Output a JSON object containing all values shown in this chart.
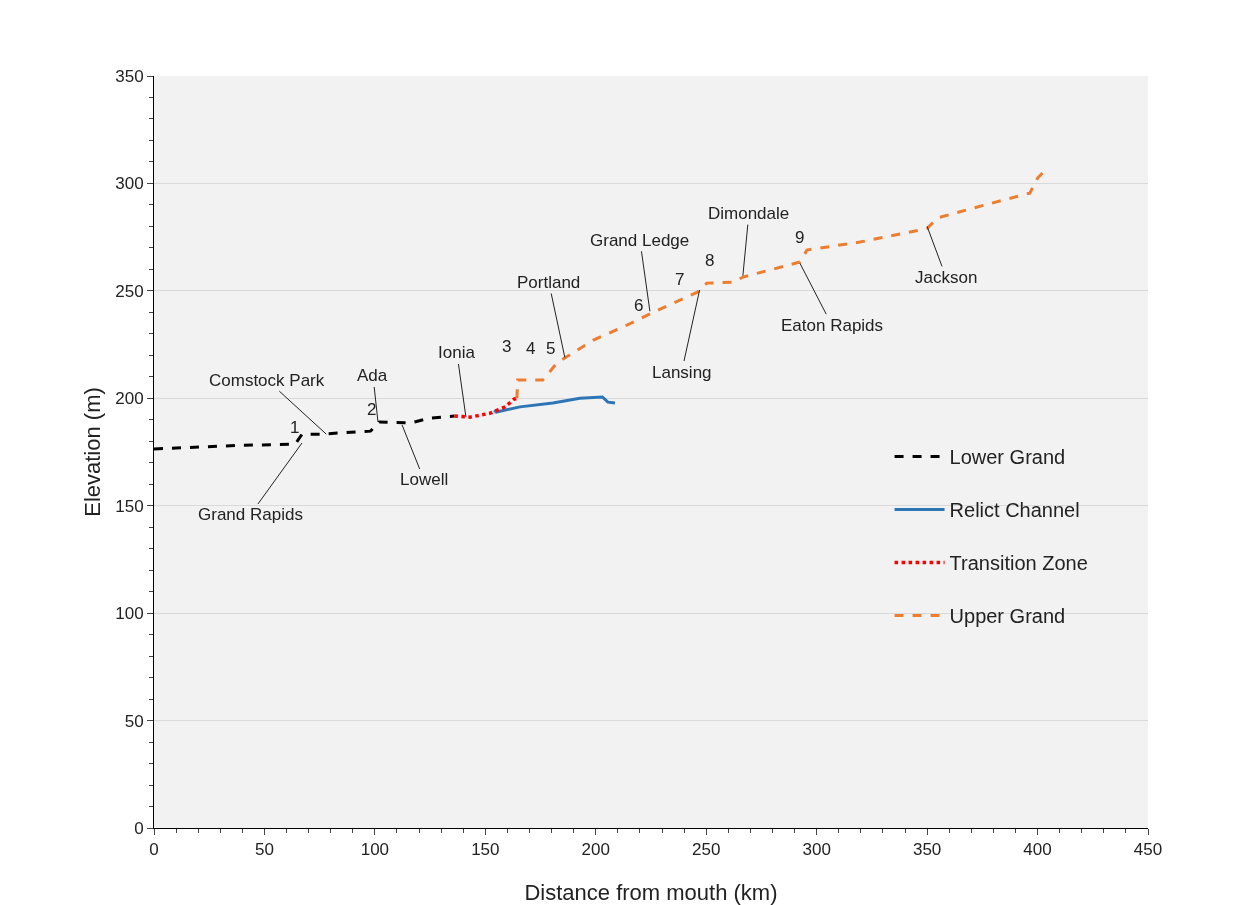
{
  "chart_data": {
    "type": "line",
    "xlabel": "Distance from mouth (km)",
    "ylabel": "Elevation (m)",
    "xlim": [
      0,
      450
    ],
    "xticks": [
      0,
      50,
      100,
      150,
      200,
      250,
      300,
      350,
      400,
      450
    ],
    "ylim": [
      0,
      350
    ],
    "yticks": [
      0,
      50,
      100,
      150,
      200,
      250,
      300,
      350
    ],
    "grid": "y",
    "legend": "right",
    "marker": "none",
    "series": [
      {
        "name": "Lower Grand",
        "color": "#000000",
        "line_style": "dashed",
        "x": [
          0,
          36.7,
          64,
          67,
          75,
          98,
          102,
          116,
          125,
          136
        ],
        "values": [
          176.4,
          178,
          178.7,
          183.3,
          183.3,
          184.7,
          189,
          188.5,
          190.8,
          191.7
        ]
      },
      {
        "name": "Relict Channel",
        "color": "#2e75b6",
        "line_style": "solid",
        "x": [
          154,
          155,
          165.7,
          180.6,
          192.8,
          203,
          205.5,
          208.7
        ],
        "values": [
          194.5,
          193.6,
          196,
          197.8,
          200,
          200.6,
          198.2,
          197.8
        ]
      },
      {
        "name": "Transition Zone",
        "color": "#ff0000",
        "line_style": "dotted",
        "x": [
          136,
          143,
          152,
          159,
          163,
          164.3
        ],
        "values": [
          191.7,
          191.2,
          193,
          196,
          199.6,
          200
        ]
      },
      {
        "name": "Upper Grand",
        "color": "#ed7d31",
        "line_style": "dashed",
        "x": [
          164.3,
          164.6,
          176,
          182.4,
          198.7,
          214,
          226,
          246,
          250.3,
          262,
          266.6,
          292.4,
          295.6,
          319.6,
          350,
          354.5,
          370.8,
          396.5,
          400,
          403.4
        ],
        "values": [
          200,
          208.5,
          208.5,
          216.4,
          227,
          234,
          240,
          249.4,
          253.6,
          254,
          256.4,
          263.4,
          269,
          272.7,
          279,
          283.9,
          288.5,
          295.5,
          302.5,
          306
        ]
      }
    ],
    "annotations": [
      {
        "text": "Grand Rapids",
        "x": 67,
        "y": 179.2
      },
      {
        "text": "Comstock Park",
        "x": 78,
        "y": 183.3
      },
      {
        "text": "Ada",
        "x": 101.4,
        "y": 189
      },
      {
        "text": "Lowell",
        "x": 112.3,
        "y": 187.6
      },
      {
        "text": "Ionia",
        "x": 141.2,
        "y": 191.3
      },
      {
        "text": "Portland",
        "x": 186,
        "y": 219
      },
      {
        "text": "Grand Ledge",
        "x": 224.5,
        "y": 240.5
      },
      {
        "text": "Lansing",
        "x": 247,
        "y": 250.4
      },
      {
        "text": "Dimondale",
        "x": 266.6,
        "y": 257.1
      },
      {
        "text": "Eaton Rapids",
        "x": 292.4,
        "y": 262.9
      },
      {
        "text": "Jackson",
        "x": 350,
        "y": 280
      },
      "1",
      "2",
      "3",
      "4",
      "5",
      "6",
      "7",
      "8",
      "9"
    ]
  }
}
